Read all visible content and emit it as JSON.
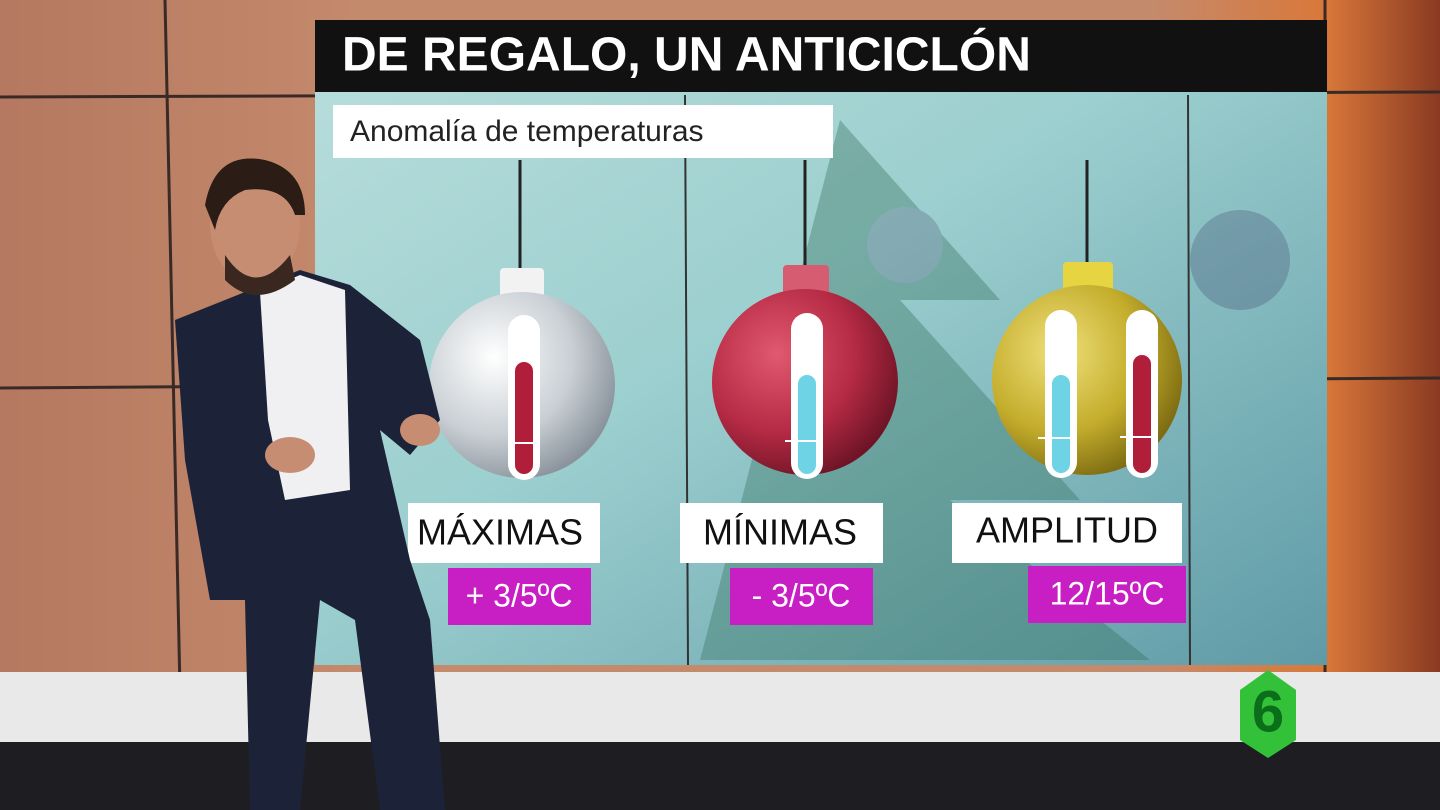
{
  "header": {
    "title": "DE REGALO, UN ANTICICLÓN",
    "subtitle": "Anomalía de temperaturas"
  },
  "panels": [
    {
      "label": "MÁXIMAS",
      "value": "+ 3/5ºC"
    },
    {
      "label": "MÍNIMAS",
      "value": "- 3/5ºC"
    },
    {
      "label": "AMPLITUD",
      "value": "12/15ºC"
    }
  ],
  "logo": "6"
}
